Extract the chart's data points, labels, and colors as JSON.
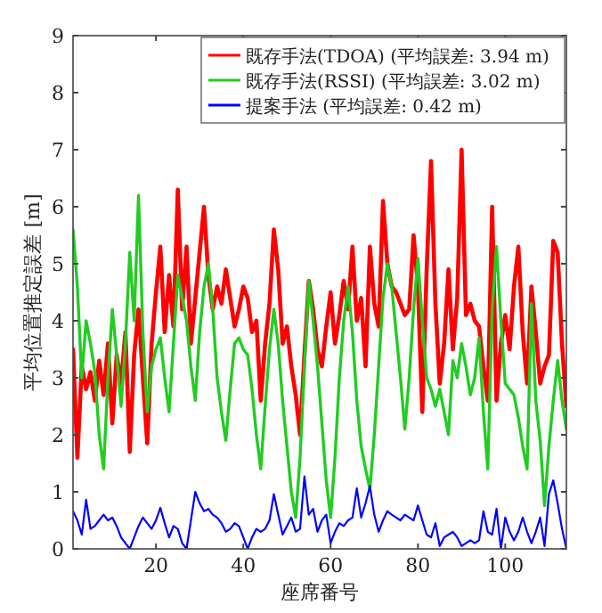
{
  "chart_data": {
    "type": "line",
    "xlabel": "座席番号",
    "ylabel": "平均位置推定誤差 [m]",
    "xlim": [
      1,
      114
    ],
    "xticks": [
      20,
      40,
      60,
      80,
      100
    ],
    "ylim": [
      0,
      9
    ],
    "yticks": [
      0,
      1,
      2,
      3,
      4,
      5,
      6,
      7,
      8,
      9
    ],
    "grid": false,
    "legend": "top right",
    "marker": "none",
    "line_style": "solid",
    "x": [
      1,
      2,
      3,
      4,
      5,
      6,
      7,
      8,
      9,
      10,
      11,
      12,
      13,
      14,
      15,
      16,
      17,
      18,
      19,
      20,
      21,
      22,
      23,
      24,
      25,
      26,
      27,
      28,
      29,
      30,
      31,
      32,
      33,
      34,
      35,
      36,
      37,
      38,
      39,
      40,
      41,
      42,
      43,
      44,
      45,
      46,
      47,
      48,
      49,
      50,
      51,
      52,
      53,
      54,
      55,
      56,
      57,
      58,
      59,
      60,
      61,
      62,
      63,
      64,
      65,
      66,
      67,
      68,
      69,
      70,
      71,
      72,
      73,
      74,
      75,
      76,
      77,
      78,
      79,
      80,
      81,
      82,
      83,
      84,
      85,
      86,
      87,
      88,
      89,
      90,
      91,
      92,
      93,
      94,
      95,
      96,
      97,
      98,
      99,
      100,
      101,
      102,
      103,
      104,
      105,
      106,
      107,
      108,
      109,
      110,
      111,
      112,
      113,
      114
    ],
    "series": [
      {
        "name": "既存手法(TDOA) (平均誤差: 3.94 m)",
        "color": "#ff0000",
        "values": [
          3.5,
          1.6,
          3.2,
          2.8,
          3.1,
          2.6,
          3.3,
          2.7,
          3.6,
          2.2,
          3.4,
          2.9,
          3.8,
          1.7,
          3.4,
          4.2,
          3.0,
          1.85,
          3.6,
          4.5,
          5.3,
          3.8,
          4.8,
          3.9,
          6.3,
          4.2,
          5.3,
          3.6,
          4.4,
          5.2,
          6.0,
          4.8,
          4.2,
          4.6,
          4.3,
          4.9,
          4.4,
          3.9,
          4.2,
          4.6,
          4.4,
          3.8,
          4.0,
          2.6,
          3.6,
          4.3,
          5.6,
          4.9,
          3.6,
          3.9,
          3.2,
          2.7,
          2.0,
          3.4,
          4.7,
          4.2,
          3.5,
          3.2,
          3.9,
          4.5,
          3.6,
          4.1,
          4.7,
          4.2,
          5.3,
          4.0,
          4.4,
          3.2,
          5.3,
          4.3,
          3.9,
          6.1,
          5.0,
          4.6,
          4.5,
          4.3,
          4.1,
          4.2,
          5.5,
          4.6,
          2.4,
          4.9,
          6.8,
          4.3,
          2.9,
          3.6,
          4.9,
          3.5,
          4.4,
          7.0,
          4.1,
          4.3,
          4.0,
          3.9,
          3.2,
          2.6,
          6.0,
          2.6,
          3.6,
          4.1,
          3.5,
          4.6,
          5.3,
          3.8,
          2.9,
          4.6,
          3.8,
          2.9,
          3.2,
          3.4,
          5.4,
          5.2,
          3.6,
          2.5
        ]
      },
      {
        "name": "既存手法(RSSI) (平均誤差: 3.02 m)",
        "color": "#22cc22",
        "values": [
          5.6,
          4.6,
          3.0,
          4.0,
          3.6,
          3.1,
          2.0,
          1.4,
          3.0,
          4.2,
          3.4,
          2.5,
          3.6,
          5.2,
          4.0,
          6.2,
          3.8,
          2.4,
          3.2,
          3.5,
          3.7,
          3.0,
          2.4,
          3.6,
          4.8,
          4.4,
          4.0,
          3.2,
          2.6,
          3.8,
          4.6,
          5.0,
          4.2,
          3.0,
          2.4,
          1.9,
          2.8,
          3.6,
          3.7,
          3.5,
          3.4,
          2.8,
          2.0,
          1.4,
          2.5,
          3.5,
          4.2,
          3.6,
          2.6,
          1.8,
          1.0,
          0.55,
          1.6,
          3.2,
          4.7,
          4.0,
          3.2,
          2.2,
          1.2,
          0.55,
          1.6,
          3.0,
          4.0,
          4.6,
          3.8,
          2.6,
          1.8,
          1.4,
          1.05,
          2.0,
          3.2,
          4.4,
          5.0,
          4.6,
          3.8,
          3.0,
          2.1,
          3.0,
          4.2,
          5.1,
          4.0,
          3.0,
          2.8,
          2.5,
          2.8,
          2.4,
          2.0,
          3.3,
          3.0,
          3.6,
          3.2,
          2.7,
          3.0,
          3.7,
          2.4,
          1.4,
          4.2,
          5.3,
          4.0,
          2.9,
          2.8,
          2.7,
          2.3,
          1.8,
          1.4,
          4.3,
          2.6,
          1.9,
          0.76,
          1.8,
          2.6,
          3.3,
          2.6,
          2.1
        ]
      },
      {
        "name": "提案手法 (平均誤差: 0.42 m)",
        "color": "#0000ff",
        "values": [
          0.66,
          0.5,
          0.25,
          0.86,
          0.35,
          0.4,
          0.5,
          0.6,
          0.5,
          0.55,
          0.4,
          0.2,
          0.1,
          0,
          0.2,
          0.4,
          0.55,
          0.45,
          0.35,
          0.5,
          0.72,
          0.45,
          0.2,
          0.4,
          0.35,
          0.1,
          0,
          0.5,
          1.0,
          0.8,
          0.66,
          0.7,
          0.6,
          0.55,
          0.45,
          0.3,
          0.35,
          0.45,
          0.4,
          0.2,
          0,
          0.2,
          0.35,
          0.3,
          0.35,
          0.5,
          0.96,
          0.6,
          0.25,
          0.4,
          0.55,
          0.3,
          0.35,
          1.27,
          0.6,
          0.7,
          0.3,
          0.5,
          0.6,
          0.1,
          0.3,
          0.45,
          0.4,
          0.5,
          0.55,
          1.06,
          0.55,
          0.8,
          1.1,
          0.6,
          0.3,
          0.5,
          0.66,
          0.6,
          0.55,
          0.5,
          0.6,
          0.55,
          0.5,
          0.76,
          0.5,
          0.25,
          0.2,
          0.45,
          0.05,
          0.2,
          0.25,
          0.3,
          0.2,
          0.05,
          0.1,
          0.15,
          0.1,
          0.15,
          0.66,
          0.3,
          0.25,
          0.7,
          0,
          0.55,
          0.3,
          0.15,
          0.3,
          0.55,
          0.3,
          0.1,
          0.3,
          0.55,
          0.05,
          0.96,
          1.2,
          0.8,
          0.35,
          0
        ]
      }
    ]
  }
}
